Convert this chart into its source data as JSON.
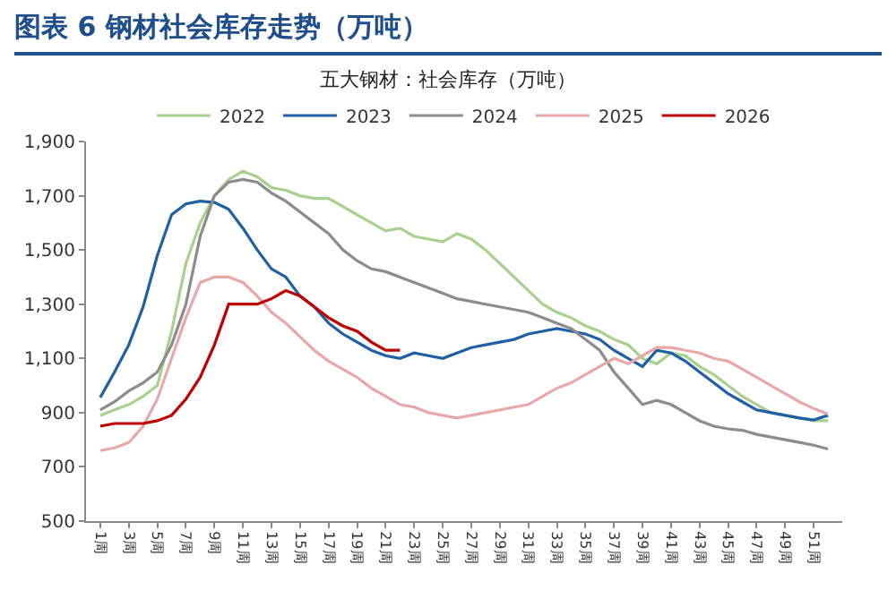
{
  "chart_data": {
    "type": "line",
    "title": "图表 6 钢材社会库存走势（万吨）",
    "subtitle": "五大钢材：社会库存（万吨）",
    "categories": [
      "1周",
      null,
      "3周",
      null,
      "5周",
      null,
      "7周",
      null,
      "9周",
      null,
      "11周",
      null,
      "13周",
      null,
      "15周",
      null,
      "17周",
      null,
      "19周",
      null,
      "21周",
      null,
      "23周",
      null,
      "25周",
      null,
      "27周",
      null,
      "29周",
      null,
      "31周",
      null,
      "33周",
      null,
      "35周",
      null,
      "37周",
      null,
      "39周",
      null,
      "41周",
      null,
      "43周",
      null,
      "45周",
      null,
      "47周",
      null,
      "49周",
      null,
      "51周",
      null
    ],
    "series": [
      {
        "name": "2022",
        "color": "#a9d18e",
        "values": [
          890,
          910,
          930,
          960,
          1000,
          1200,
          1450,
          1600,
          1700,
          1760,
          1790,
          1770,
          1730,
          1720,
          1700,
          1690,
          1690,
          1660,
          1630,
          1600,
          1570,
          1580,
          1550,
          1540,
          1530,
          1560,
          1540,
          1500,
          1450,
          1400,
          1350,
          1300,
          1270,
          1250,
          1220,
          1200,
          1170,
          1150,
          1100,
          1080,
          1120,
          1110,
          1070,
          1040,
          1000,
          960,
          930,
          900,
          890,
          880,
          870,
          870
        ]
      },
      {
        "name": "2023",
        "color": "#1f5fa6",
        "values": [
          956,
          1050,
          1150,
          1290,
          1480,
          1630,
          1670,
          1680,
          1675,
          1650,
          1580,
          1500,
          1430,
          1400,
          1330,
          1290,
          1230,
          1190,
          1160,
          1130,
          1110,
          1100,
          1120,
          1110,
          1100,
          1120,
          1140,
          1150,
          1160,
          1170,
          1190,
          1200,
          1210,
          1200,
          1190,
          1170,
          1130,
          1100,
          1070,
          1130,
          1120,
          1090,
          1050,
          1010,
          970,
          940,
          910,
          900,
          890,
          880,
          873,
          890
        ]
      },
      {
        "name": "2024",
        "color": "#8c8c8c",
        "values": [
          910,
          940,
          980,
          1010,
          1050,
          1150,
          1300,
          1550,
          1700,
          1750,
          1760,
          1750,
          1710,
          1680,
          1640,
          1600,
          1560,
          1500,
          1460,
          1430,
          1420,
          1400,
          1380,
          1360,
          1340,
          1320,
          1310,
          1300,
          1290,
          1280,
          1270,
          1250,
          1230,
          1210,
          1170,
          1130,
          1050,
          990,
          930,
          945,
          930,
          900,
          870,
          850,
          840,
          835,
          820,
          810,
          800,
          790,
          780,
          766
        ]
      },
      {
        "name": "2025",
        "color": "#e8a8a8",
        "values": [
          760,
          770,
          790,
          850,
          950,
          1100,
          1250,
          1380,
          1400,
          1400,
          1380,
          1330,
          1270,
          1230,
          1180,
          1130,
          1090,
          1060,
          1030,
          990,
          960,
          930,
          920,
          900,
          890,
          880,
          890,
          900,
          910,
          920,
          930,
          960,
          990,
          1010,
          1040,
          1070,
          1100,
          1080,
          1110,
          1140,
          1140,
          1130,
          1120,
          1100,
          1090,
          1060,
          1030,
          1000,
          970,
          940,
          915,
          895
        ]
      },
      {
        "name": "2026",
        "color": "#c00000",
        "values": [
          850,
          860,
          860,
          860,
          870,
          890,
          950,
          1030,
          1150,
          1300,
          1300,
          1300,
          1320,
          1350,
          1330,
          1290,
          1250,
          1220,
          1200,
          1160,
          1130,
          1130,
          null,
          null,
          null,
          null,
          null,
          null,
          null,
          null,
          null,
          null,
          null,
          null,
          null,
          null,
          null,
          null,
          null,
          null,
          null,
          null,
          null,
          null,
          null,
          null,
          null,
          null,
          null,
          null,
          null,
          null
        ]
      }
    ],
    "ylim": [
      500,
      1900
    ],
    "yticks": [
      500,
      700,
      900,
      {
        "value": 1100,
        "label": "1,100"
      },
      {
        "value": 1300,
        "label": "1,300"
      },
      {
        "value": 1500,
        "label": "1,500"
      },
      {
        "value": 1700,
        "label": "1,700"
      },
      {
        "value": 1900,
        "label": "1,900"
      }
    ],
    "grid": false,
    "legend": "top",
    "marker": "none",
    "line_style": "solid"
  }
}
